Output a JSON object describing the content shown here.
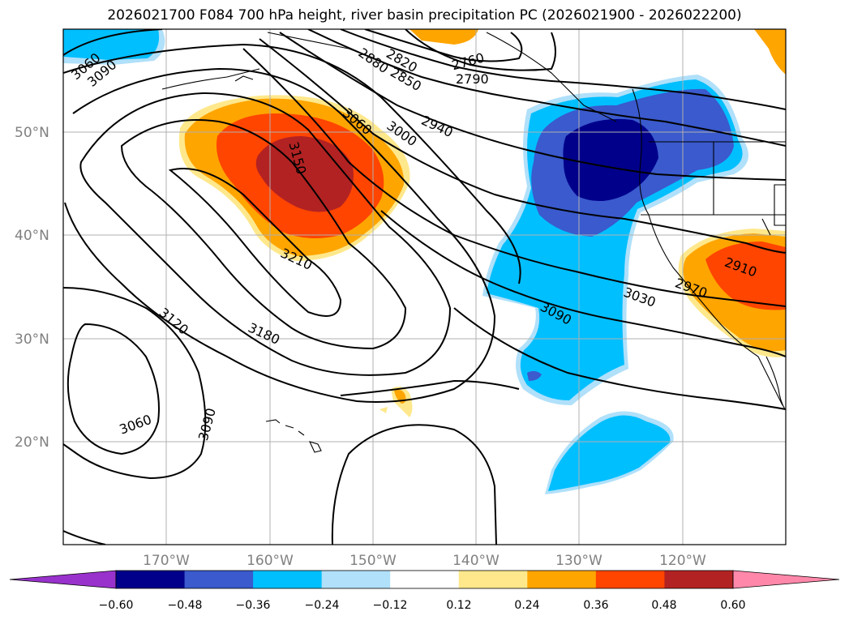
{
  "title": "2026021700 F084 700 hPa height, river basin precipitation PC (2026021900 - 2026022200)",
  "map": {
    "lon_range": [
      -180,
      -110
    ],
    "lat_range": [
      10,
      60
    ],
    "lon_ticks": [
      {
        "value": -170,
        "label": "170°W"
      },
      {
        "value": -160,
        "label": "160°W"
      },
      {
        "value": -150,
        "label": "150°W"
      },
      {
        "value": -140,
        "label": "140°W"
      },
      {
        "value": -130,
        "label": "130°W"
      },
      {
        "value": -120,
        "label": "120°W"
      }
    ],
    "lat_ticks": [
      {
        "value": 50,
        "label": "50°N"
      },
      {
        "value": 40,
        "label": "40°N"
      },
      {
        "value": 30,
        "label": "30°N"
      },
      {
        "value": 20,
        "label": "20°N"
      }
    ],
    "gridlines": true,
    "contour_line_color": "#000000",
    "contour_labels": [
      "3060",
      "3090",
      "2880",
      "2820",
      "2850",
      "2760",
      "2790",
      "3060",
      "3000",
      "2940",
      "3150",
      "3210",
      "2910",
      "2970",
      "3030",
      "3090",
      "3120",
      "3180",
      "3060",
      "3090"
    ]
  },
  "colorbar": {
    "extend": "both",
    "ticks": [
      "−0.60",
      "−0.48",
      "−0.36",
      "−0.24",
      "−0.12",
      "0.12",
      "0.24",
      "0.36",
      "0.48",
      "0.60"
    ],
    "colors": [
      "#9932cc",
      "#00008b",
      "#3a5acd",
      "#00bfff",
      "#b0e0fa",
      "#ffffff",
      "#ffe88c",
      "#ffa500",
      "#ff4500",
      "#b22222",
      "#ff88aa"
    ]
  }
}
